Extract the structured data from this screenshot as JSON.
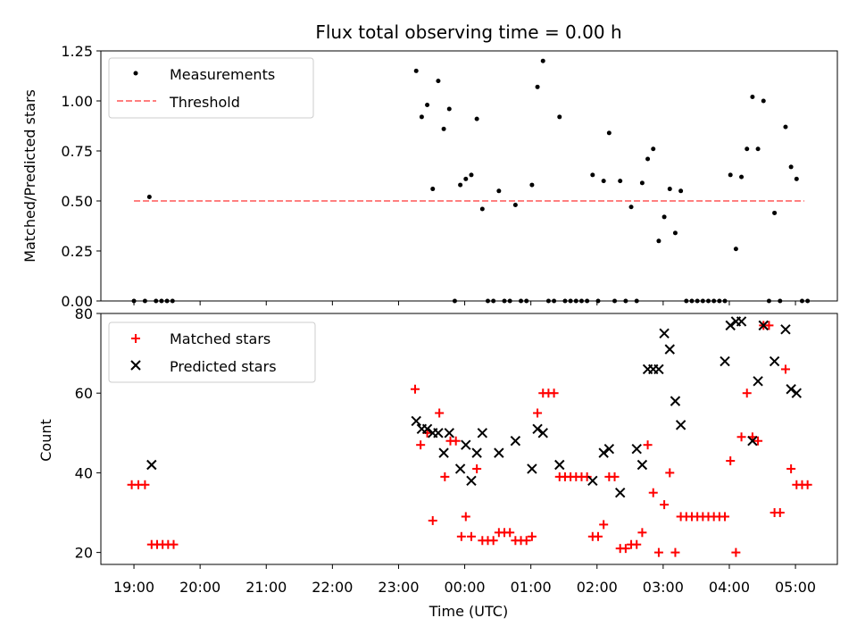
{
  "chart_data": [
    {
      "type": "scatter",
      "title": "Flux total observing time = 0.00 h",
      "xlabel": "",
      "ylabel": "Matched/Predicted stars",
      "xlim": [
        "18:30",
        "05:38"
      ],
      "ylim": [
        0,
        1.25
      ],
      "y_ticks": [
        "0.00",
        "0.25",
        "0.50",
        "0.75",
        "1.00",
        "1.25"
      ],
      "x_tick_times": [
        "19:00",
        "20:00",
        "21:00",
        "22:00",
        "23:00",
        "00:00",
        "01:00",
        "02:00",
        "03:00",
        "04:00",
        "05:00"
      ],
      "legend": {
        "placement": "top-left",
        "entries": [
          "Measurements",
          "Threshold"
        ]
      },
      "colors": {
        "measurements": "#000000",
        "threshold": "#ff7f7f"
      },
      "threshold": {
        "name": "Threshold",
        "value": 0.5,
        "x_start": "19:00",
        "x_end": "05:08"
      },
      "series": [
        {
          "name": "Measurements",
          "points": [
            [
              "19:00",
              0
            ],
            [
              "19:10",
              0
            ],
            [
              "19:14",
              0.52
            ],
            [
              "19:20",
              0
            ],
            [
              "19:25",
              0
            ],
            [
              "19:30",
              0
            ],
            [
              "19:35",
              0
            ],
            [
              "23:16",
              1.15
            ],
            [
              "23:21",
              0.92
            ],
            [
              "23:26",
              0.98
            ],
            [
              "23:31",
              0.56
            ],
            [
              "23:36",
              1.1
            ],
            [
              "23:41",
              0.86
            ],
            [
              "23:46",
              0.96
            ],
            [
              "23:51",
              0
            ],
            [
              "23:56",
              0.58
            ],
            [
              "00:01",
              0.61
            ],
            [
              "00:06",
              0.63
            ],
            [
              "00:11",
              0.91
            ],
            [
              "00:16",
              0.46
            ],
            [
              "00:21",
              0
            ],
            [
              "00:26",
              0
            ],
            [
              "00:31",
              0.55
            ],
            [
              "00:36",
              0
            ],
            [
              "00:41",
              0
            ],
            [
              "00:46",
              0.48
            ],
            [
              "00:51",
              0
            ],
            [
              "00:56",
              0
            ],
            [
              "01:01",
              0.58
            ],
            [
              "01:06",
              1.07
            ],
            [
              "01:11",
              1.2
            ],
            [
              "01:16",
              0
            ],
            [
              "01:21",
              0
            ],
            [
              "01:26",
              0.92
            ],
            [
              "01:31",
              0
            ],
            [
              "01:36",
              0
            ],
            [
              "01:41",
              0
            ],
            [
              "01:46",
              0
            ],
            [
              "01:51",
              0
            ],
            [
              "01:56",
              0.63
            ],
            [
              "02:01",
              0
            ],
            [
              "02:06",
              0.6
            ],
            [
              "02:11",
              0.84
            ],
            [
              "02:16",
              0
            ],
            [
              "02:21",
              0.6
            ],
            [
              "02:26",
              0
            ],
            [
              "02:31",
              0.47
            ],
            [
              "02:36",
              0
            ],
            [
              "02:41",
              0.59
            ],
            [
              "02:46",
              0.71
            ],
            [
              "02:51",
              0.76
            ],
            [
              "02:56",
              0.3
            ],
            [
              "03:01",
              0.42
            ],
            [
              "03:06",
              0.56
            ],
            [
              "03:11",
              0.34
            ],
            [
              "03:16",
              0.55
            ],
            [
              "03:21",
              0
            ],
            [
              "03:26",
              0
            ],
            [
              "03:31",
              0
            ],
            [
              "03:36",
              0
            ],
            [
              "03:41",
              0
            ],
            [
              "03:46",
              0
            ],
            [
              "03:51",
              0
            ],
            [
              "03:56",
              0
            ],
            [
              "04:01",
              0.63
            ],
            [
              "04:06",
              0.26
            ],
            [
              "04:11",
              0.62
            ],
            [
              "04:16",
              0.76
            ],
            [
              "04:21",
              1.02
            ],
            [
              "04:26",
              0.76
            ],
            [
              "04:31",
              1.0
            ],
            [
              "04:36",
              0
            ],
            [
              "04:41",
              0.44
            ],
            [
              "04:46",
              0
            ],
            [
              "04:51",
              0.87
            ],
            [
              "04:56",
              0.67
            ],
            [
              "05:01",
              0.61
            ],
            [
              "05:06",
              0
            ],
            [
              "05:11",
              0
            ]
          ]
        }
      ]
    },
    {
      "type": "scatter",
      "title": "",
      "xlabel": "Time (UTC)",
      "ylabel": "Count",
      "xlim": [
        "18:30",
        "05:38"
      ],
      "ylim": [
        17,
        80
      ],
      "y_ticks": [
        "20",
        "40",
        "60",
        "80"
      ],
      "x_tick_labels": [
        "19:00",
        "20:00",
        "21:00",
        "22:00",
        "23:00",
        "00:00",
        "01:00",
        "02:00",
        "03:00",
        "04:00",
        "05:00"
      ],
      "legend": {
        "placement": "top-left",
        "entries": [
          "Matched stars",
          "Predicted stars"
        ]
      },
      "colors": {
        "matched": "#ff0000",
        "predicted": "#000000"
      },
      "series": [
        {
          "name": "Matched stars",
          "points": [
            [
              "18:58",
              37
            ],
            [
              "19:04",
              37
            ],
            [
              "19:10",
              37
            ],
            [
              "19:16",
              22
            ],
            [
              "19:21",
              22
            ],
            [
              "19:26",
              22
            ],
            [
              "19:31",
              22
            ],
            [
              "19:36",
              22
            ],
            [
              "23:15",
              61
            ],
            [
              "23:20",
              47
            ],
            [
              "23:26",
              50
            ],
            [
              "23:31",
              28
            ],
            [
              "23:37",
              55
            ],
            [
              "23:42",
              39
            ],
            [
              "23:47",
              48
            ],
            [
              "23:52",
              48
            ],
            [
              "23:57",
              24
            ],
            [
              "00:01",
              29
            ],
            [
              "00:06",
              24
            ],
            [
              "00:11",
              41
            ],
            [
              "00:16",
              23
            ],
            [
              "00:21",
              23
            ],
            [
              "00:26",
              23
            ],
            [
              "00:31",
              25
            ],
            [
              "00:36",
              25
            ],
            [
              "00:41",
              25
            ],
            [
              "00:46",
              23
            ],
            [
              "00:51",
              23
            ],
            [
              "00:56",
              23
            ],
            [
              "01:01",
              24
            ],
            [
              "01:06",
              55
            ],
            [
              "01:11",
              60
            ],
            [
              "01:16",
              60
            ],
            [
              "01:21",
              60
            ],
            [
              "01:26",
              39
            ],
            [
              "01:31",
              39
            ],
            [
              "01:36",
              39
            ],
            [
              "01:41",
              39
            ],
            [
              "01:46",
              39
            ],
            [
              "01:51",
              39
            ],
            [
              "01:56",
              24
            ],
            [
              "02:01",
              24
            ],
            [
              "02:06",
              27
            ],
            [
              "02:11",
              39
            ],
            [
              "02:16",
              39
            ],
            [
              "02:21",
              21
            ],
            [
              "02:26",
              21
            ],
            [
              "02:31",
              22
            ],
            [
              "02:36",
              22
            ],
            [
              "02:41",
              25
            ],
            [
              "02:46",
              47
            ],
            [
              "02:51",
              35
            ],
            [
              "02:56",
              20
            ],
            [
              "03:01",
              32
            ],
            [
              "03:06",
              40
            ],
            [
              "03:11",
              20
            ],
            [
              "03:16",
              29
            ],
            [
              "03:21",
              29
            ],
            [
              "03:26",
              29
            ],
            [
              "03:31",
              29
            ],
            [
              "03:36",
              29
            ],
            [
              "03:41",
              29
            ],
            [
              "03:46",
              29
            ],
            [
              "03:51",
              29
            ],
            [
              "03:56",
              29
            ],
            [
              "04:01",
              43
            ],
            [
              "04:06",
              20
            ],
            [
              "04:11",
              49
            ],
            [
              "04:16",
              60
            ],
            [
              "04:21",
              49
            ],
            [
              "04:26",
              48
            ],
            [
              "04:31",
              77
            ],
            [
              "04:36",
              77
            ],
            [
              "04:41",
              30
            ],
            [
              "04:46",
              30
            ],
            [
              "04:51",
              66
            ],
            [
              "04:56",
              41
            ],
            [
              "05:01",
              37
            ],
            [
              "05:06",
              37
            ],
            [
              "05:11",
              37
            ]
          ]
        },
        {
          "name": "Predicted stars",
          "points": [
            [
              "19:16",
              42
            ],
            [
              "23:16",
              53
            ],
            [
              "23:21",
              51
            ],
            [
              "23:26",
              51
            ],
            [
              "23:31",
              50
            ],
            [
              "23:36",
              50
            ],
            [
              "23:41",
              45
            ],
            [
              "23:46",
              50
            ],
            [
              "23:56",
              41
            ],
            [
              "00:01",
              47
            ],
            [
              "00:06",
              38
            ],
            [
              "00:11",
              45
            ],
            [
              "00:16",
              50
            ],
            [
              "00:31",
              45
            ],
            [
              "00:46",
              48
            ],
            [
              "01:01",
              41
            ],
            [
              "01:06",
              51
            ],
            [
              "01:11",
              50
            ],
            [
              "01:26",
              42
            ],
            [
              "01:56",
              38
            ],
            [
              "02:06",
              45
            ],
            [
              "02:11",
              46
            ],
            [
              "02:21",
              35
            ],
            [
              "02:36",
              46
            ],
            [
              "02:41",
              42
            ],
            [
              "02:46",
              66
            ],
            [
              "02:51",
              66
            ],
            [
              "02:56",
              66
            ],
            [
              "03:01",
              75
            ],
            [
              "03:06",
              71
            ],
            [
              "03:11",
              58
            ],
            [
              "03:16",
              52
            ],
            [
              "03:56",
              68
            ],
            [
              "04:01",
              77
            ],
            [
              "04:06",
              78
            ],
            [
              "04:11",
              78
            ],
            [
              "04:21",
              48
            ],
            [
              "04:26",
              63
            ],
            [
              "04:31",
              77
            ],
            [
              "04:41",
              68
            ],
            [
              "04:51",
              76
            ],
            [
              "04:56",
              61
            ],
            [
              "05:01",
              60
            ]
          ]
        }
      ]
    }
  ]
}
